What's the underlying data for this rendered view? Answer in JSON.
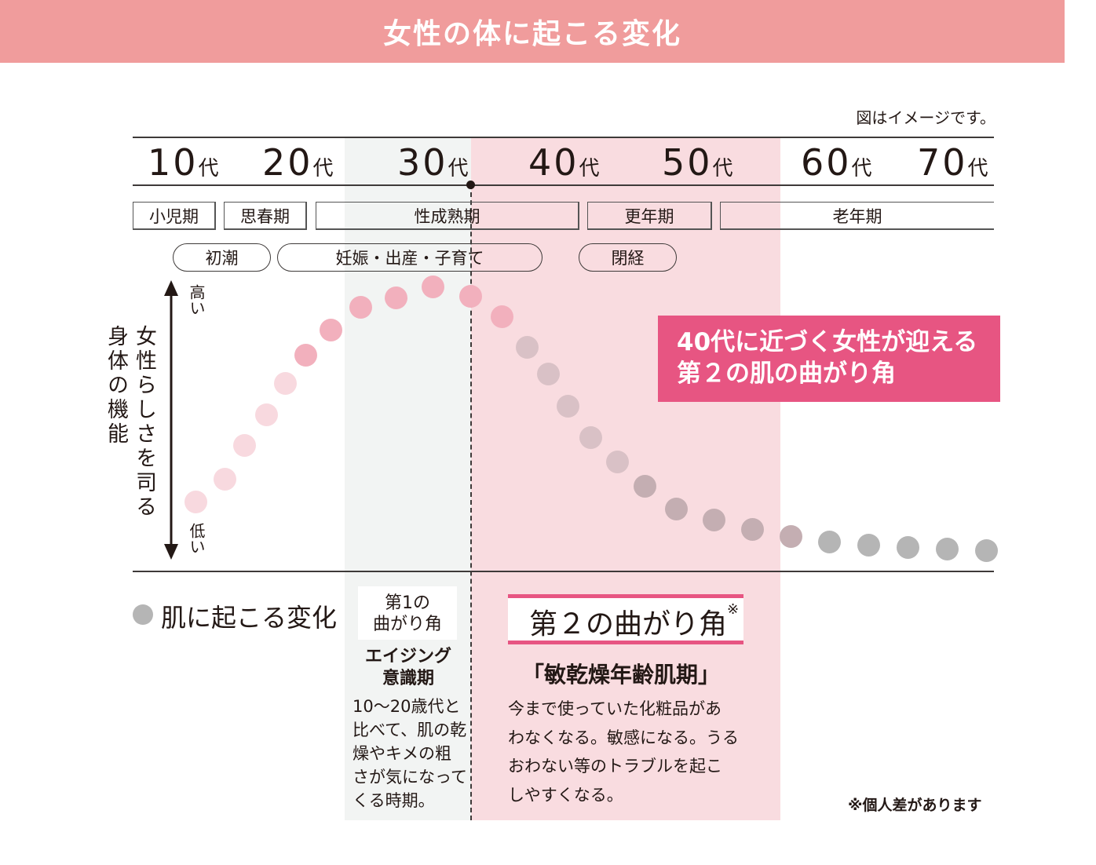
{
  "title": "女性の体に起こる変化",
  "note_top": "図はイメージです。",
  "decades": [
    {
      "num": "10",
      "unit": "代"
    },
    {
      "num": "20",
      "unit": "代"
    },
    {
      "num": "30",
      "unit": "代"
    },
    {
      "num": "40",
      "unit": "代"
    },
    {
      "num": "50",
      "unit": "代"
    },
    {
      "num": "60",
      "unit": "代"
    },
    {
      "num": "70",
      "unit": "代"
    }
  ],
  "life_stages": [
    "小児期",
    "思春期",
    "性成熟期",
    "更年期",
    "老年期"
  ],
  "events": [
    "初潮",
    "妊娠・出産・子育て",
    "閉経"
  ],
  "y_axis": {
    "label_left": "身体の機能",
    "label_right": "女性らしさを司る",
    "high": "高い",
    "low": "低い"
  },
  "legend": {
    "label": "肌に起こる変化",
    "color": "#b5b5b5"
  },
  "callout": {
    "line1": "40代に近づく女性が迎える",
    "line2": "第２の肌の曲がり角"
  },
  "first_corner": {
    "badge_line1": "第1の",
    "badge_line2": "曲がり角",
    "heading_line1": "エイジング",
    "heading_line2": "意識期",
    "body": [
      "10〜20歳代と",
      "比べて、肌の乾",
      "燥やキメの粗",
      "さが気になって",
      "くる時期。"
    ]
  },
  "second_corner": {
    "badge": "第２の曲がり角",
    "badge_mark": "※",
    "heading": "「敏乾燥年齢肌期」",
    "body": [
      "今まで使っていた化粧品があ",
      "わなくなる。敏感になる。うる",
      "おわない等のトラブルを起こ",
      "しやすくなる。"
    ]
  },
  "footnote": "※個人差があります",
  "colors": {
    "banner": "#f09c9c",
    "accent": "#e75582",
    "zone_first": "#f2f4f3",
    "zone_second": "#f9dce0",
    "dot_light_pink": "#f8d9df",
    "dot_pink": "#f2b0bd",
    "dot_mauve_light": "#d9c1c6",
    "dot_mauve": "#c4aeb2",
    "dot_gray": "#b5b5b5"
  },
  "curve_tones": [
    "dot_light_pink",
    "dot_light_pink",
    "dot_light_pink",
    "dot_light_pink",
    "dot_light_pink",
    "dot_pink",
    "dot_pink",
    "dot_pink",
    "dot_pink",
    "dot_pink",
    "dot_pink",
    "dot_pink",
    "dot_mauve_light",
    "dot_mauve_light",
    "dot_mauve_light",
    "dot_mauve_light",
    "dot_mauve_light",
    "dot_mauve",
    "dot_mauve",
    "dot_mauve",
    "dot_mauve",
    "dot_mauve",
    "dot_gray",
    "dot_gray",
    "dot_gray",
    "dot_gray",
    "dot_gray"
  ]
}
